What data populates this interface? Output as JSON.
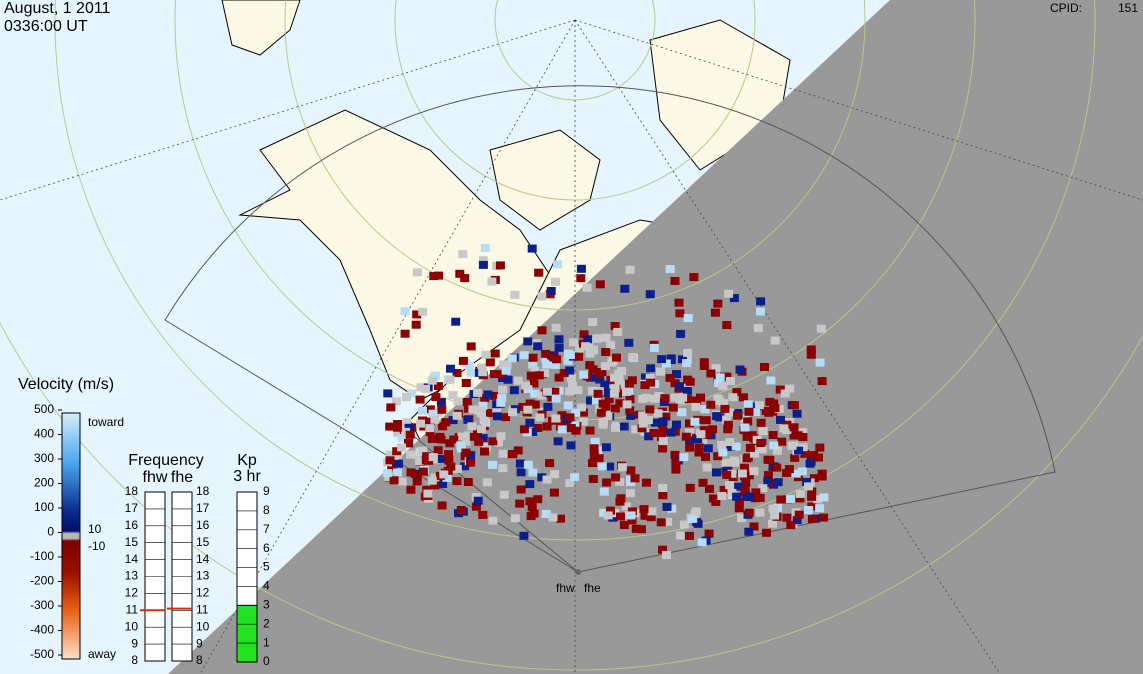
{
  "header": {
    "date": "August, 1 2011",
    "time": "0336:00 UT",
    "cpid_label": "CPID:",
    "cpid": 151
  },
  "velocity_scale": {
    "title": "Velocity (m/s)",
    "ticks": [
      500,
      400,
      300,
      200,
      100,
      0,
      -100,
      -200,
      -300,
      -400,
      -500
    ],
    "toward": "toward",
    "away": "away",
    "ground_scatter": [
      10,
      -10
    ]
  },
  "frequency": {
    "title": "Frequency",
    "radars": [
      {
        "name": "fhw",
        "value": 11
      },
      {
        "name": "fhe",
        "value": 11.1
      }
    ],
    "ticks": [
      8,
      9,
      10,
      11,
      12,
      13,
      14,
      15,
      16,
      17,
      18
    ]
  },
  "kp": {
    "title": "Kp",
    "subtitle": "3 hr",
    "ticks": [
      0,
      1,
      2,
      3,
      4,
      5,
      6,
      7,
      8,
      9
    ],
    "value": 3
  },
  "radar_labels": [
    "fhw",
    "fhe"
  ]
}
